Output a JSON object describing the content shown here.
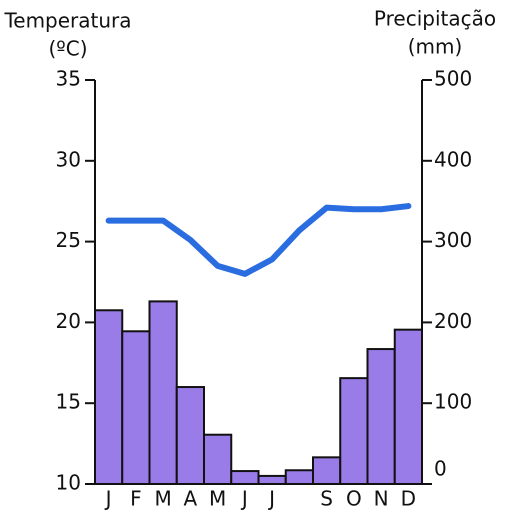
{
  "chart_data": {
    "type": "climograph",
    "y_label": "Temperatura",
    "y_unit": "(ºC)",
    "y2_label": "Precipitação",
    "y2_unit": "(mm)",
    "categories": [
      "J",
      "F",
      "M",
      "A",
      "M",
      "J",
      "J",
      null,
      "S",
      "O",
      "N",
      "D"
    ],
    "ylim": [
      10,
      35
    ],
    "yticks": [
      10,
      15,
      20,
      25,
      30,
      35
    ],
    "y2lim": [
      0,
      500
    ],
    "y2ticks": [
      0,
      100,
      200,
      300,
      400,
      500
    ],
    "series": [
      {
        "type": "bar",
        "axis": "y2",
        "color": "#9a7ce8",
        "values": [
          215,
          189,
          226,
          120,
          61,
          16,
          10,
          17,
          33,
          131,
          167,
          191
        ]
      },
      {
        "type": "line",
        "axis": "y",
        "color": "#2a6de0",
        "values": [
          26.3,
          26.3,
          26.3,
          25.1,
          23.5,
          23.0,
          23.9,
          25.7,
          27.1,
          27.0,
          27.0,
          27.2
        ]
      }
    ]
  }
}
